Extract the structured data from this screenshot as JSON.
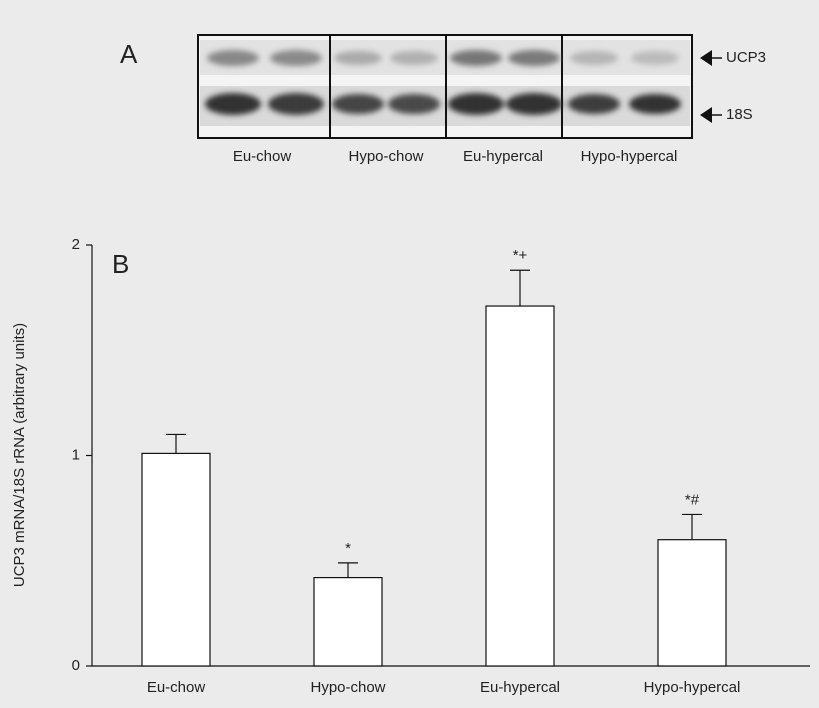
{
  "blot": {
    "panel_label": "A",
    "lanes": [
      "Eu-chow",
      "Hypo-chow",
      "Eu-hypercal",
      "Hypo-hypercal"
    ],
    "bands": [
      "UCP3",
      "18S"
    ]
  },
  "chart_data": {
    "type": "bar",
    "panel_label": "B",
    "y_label": "UCP3 mRNA/18S rRNA (arbitrary units)",
    "categories": [
      "Eu-chow",
      "Hypo-chow",
      "Eu-hypercal",
      "Hypo-hypercal"
    ],
    "values": [
      1.01,
      0.42,
      1.71,
      0.6
    ],
    "errors": [
      0.09,
      0.07,
      0.17,
      0.12
    ],
    "annotations": [
      null,
      "*",
      "*+",
      "*#"
    ],
    "color": "#ffffff",
    "ylim": [
      0,
      2
    ],
    "yticks": [
      0,
      1,
      2
    ],
    "grid": false
  }
}
